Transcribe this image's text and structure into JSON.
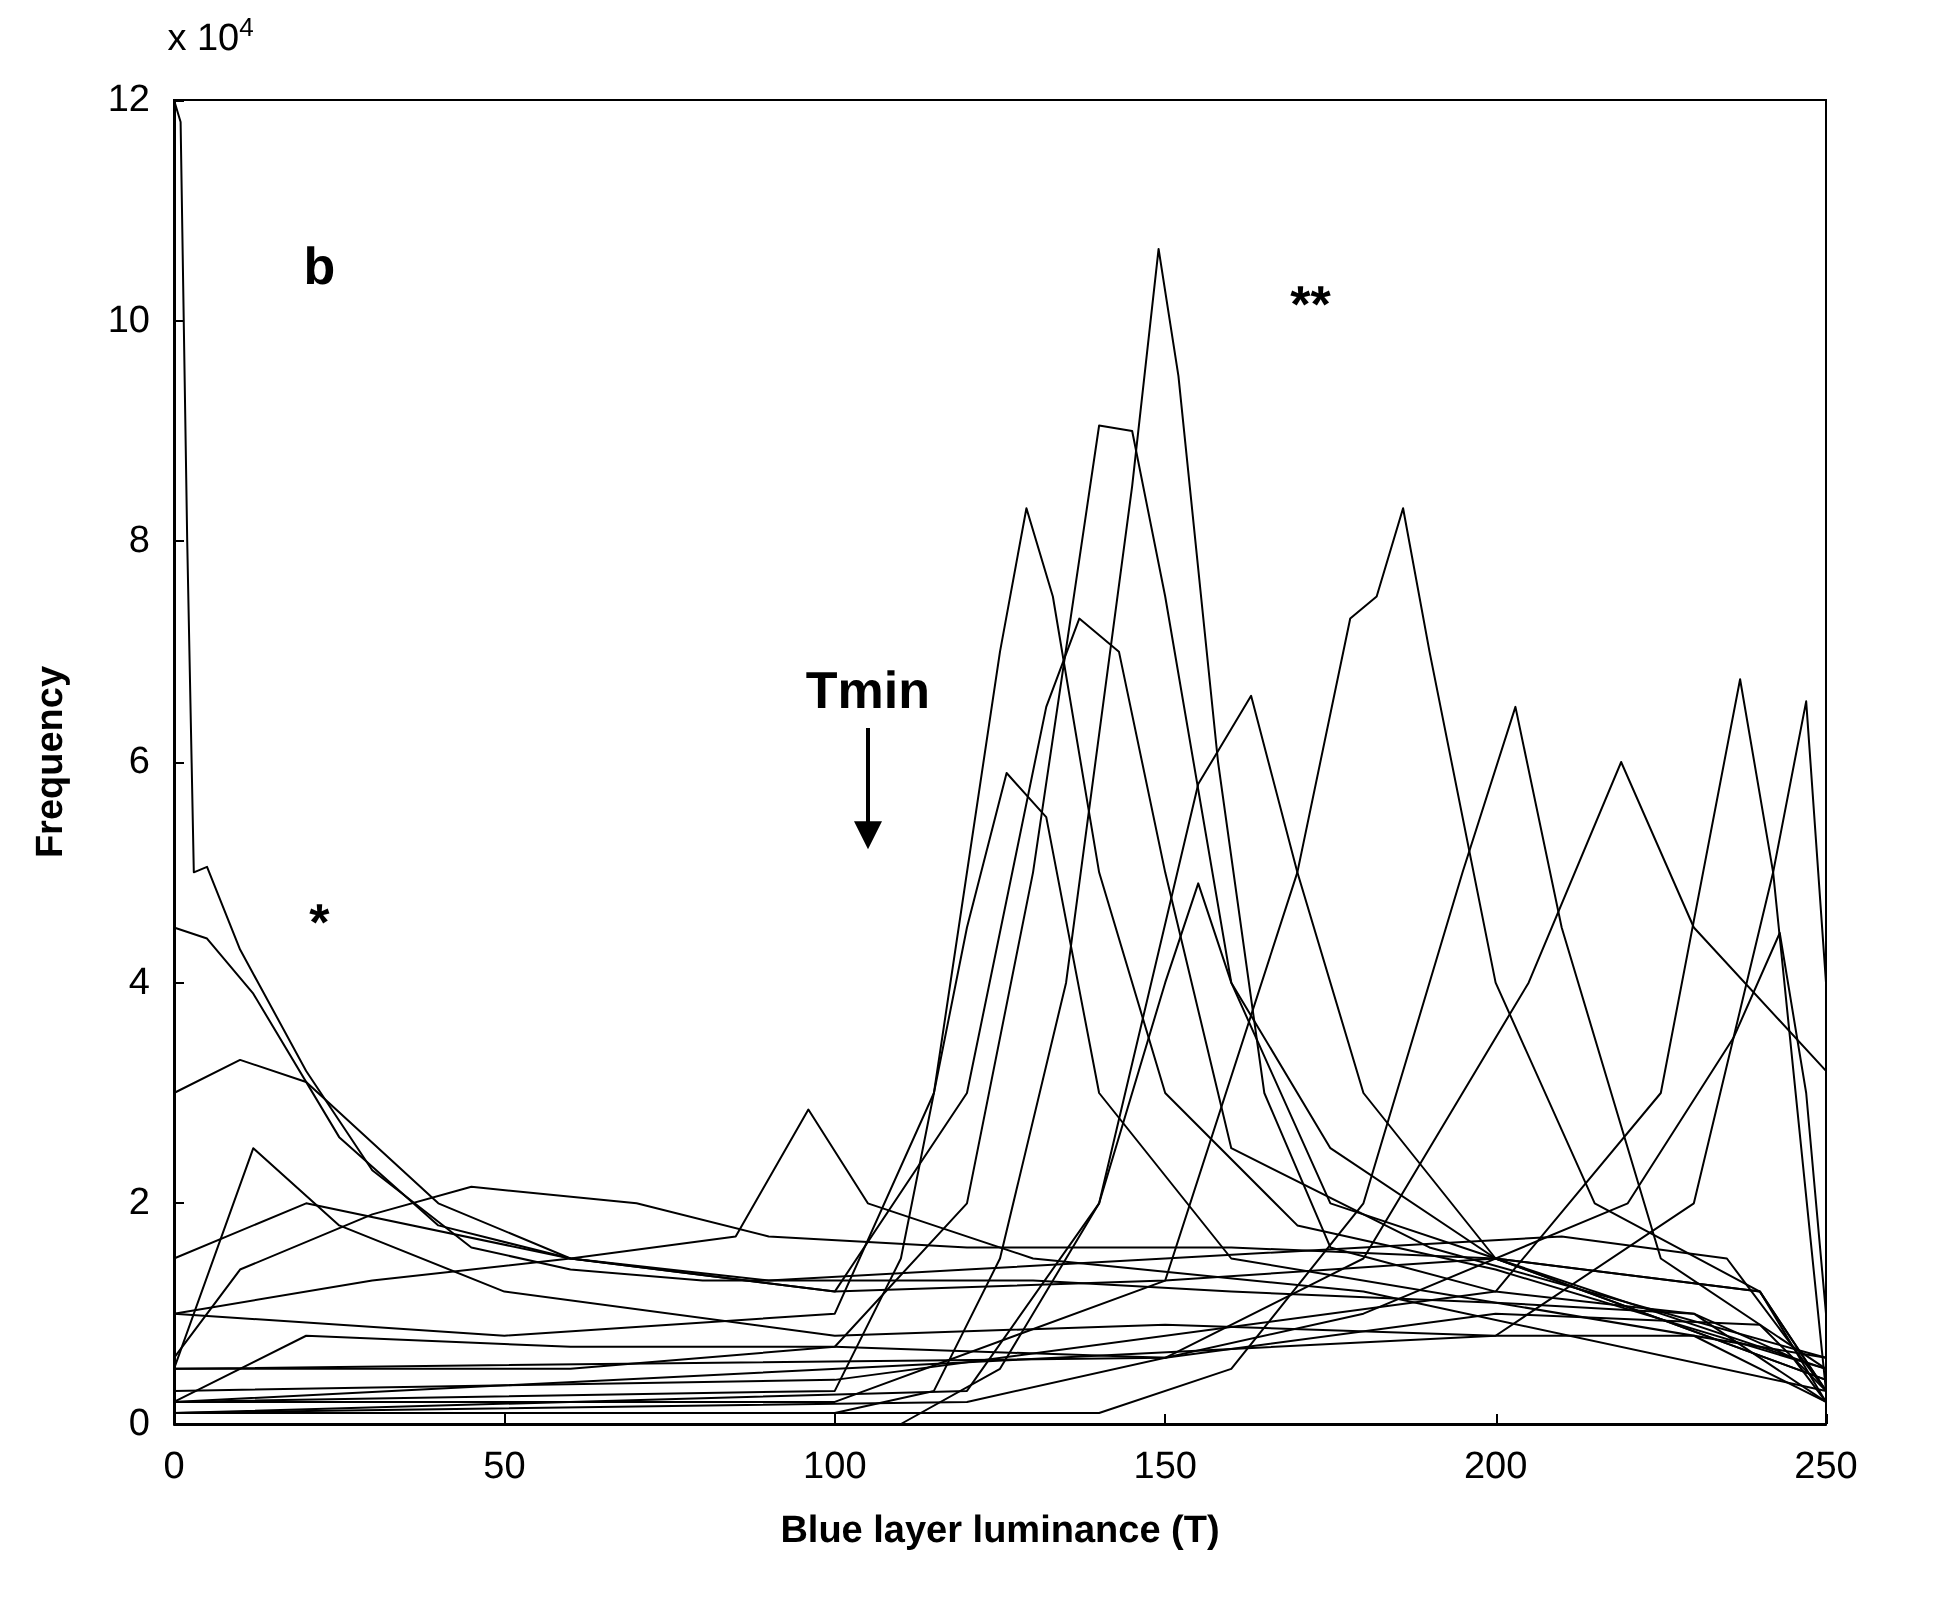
{
  "chart_data": {
    "type": "line",
    "xlabel": "Blue layer luminance (T)",
    "ylabel": "Frequency",
    "annotations": [
      "x 10$^{4}$",
      "b",
      "*",
      "**",
      "Tmin"
    ],
    "xlim": [
      0,
      250
    ],
    "xticks": [
      0,
      50,
      100,
      150,
      200,
      250
    ],
    "ylim": [
      0,
      12
    ],
    "yticks": [
      0,
      2,
      4,
      6,
      8,
      10,
      12
    ],
    "grid": false,
    "marker": "none",
    "line_style": "solid",
    "series": [
      {
        "color": "#000000",
        "x": [
          0,
          1,
          2,
          3,
          5,
          10,
          20,
          30,
          45,
          60,
          80,
          100,
          130,
          160,
          200,
          230,
          245,
          250
        ],
        "values": [
          12,
          11.8,
          8,
          5,
          5.05,
          4.3,
          3.2,
          2.3,
          1.6,
          1.4,
          1.3,
          1.3,
          1.3,
          1.2,
          1.1,
          1.0,
          0.6,
          0.2
        ]
      },
      {
        "color": "#000000",
        "x": [
          0,
          5,
          12,
          25,
          40,
          60,
          90,
          120,
          150,
          180,
          210,
          235,
          250
        ],
        "values": [
          4.5,
          4.4,
          3.9,
          2.6,
          1.8,
          1.5,
          1.3,
          1.4,
          1.5,
          1.6,
          1.7,
          1.5,
          0.3
        ]
      },
      {
        "color": "#000000",
        "x": [
          0,
          100,
          115,
          125,
          135,
          145,
          149,
          152,
          158,
          165,
          175,
          200,
          230,
          250
        ],
        "values": [
          0.1,
          0.1,
          0.3,
          1.5,
          4,
          8.5,
          10.65,
          9.5,
          6,
          3,
          1.6,
          1.2,
          1.0,
          0.2
        ]
      },
      {
        "color": "#000000",
        "x": [
          0,
          60,
          100,
          120,
          130,
          140,
          145,
          150,
          160,
          175,
          200,
          240,
          250
        ],
        "values": [
          0.5,
          0.5,
          0.7,
          2,
          5,
          9.05,
          9.0,
          7.5,
          4,
          2,
          1.5,
          1.2,
          0.3
        ]
      },
      {
        "color": "#000000",
        "x": [
          0,
          50,
          100,
          115,
          125,
          129,
          133,
          140,
          150,
          170,
          200,
          250
        ],
        "values": [
          1,
          0.8,
          1,
          3,
          7,
          8.3,
          7.5,
          5,
          3,
          1.8,
          1.4,
          0.5
        ]
      },
      {
        "color": "#000000",
        "x": [
          0,
          100,
          150,
          170,
          178,
          182,
          186,
          190,
          200,
          215,
          240,
          250
        ],
        "values": [
          0.2,
          0.2,
          1.3,
          5,
          7.3,
          7.5,
          8.3,
          7,
          4,
          2,
          1.2,
          0.3
        ]
      },
      {
        "color": "#000000",
        "x": [
          0,
          20,
          60,
          100,
          120,
          132,
          137,
          143,
          150,
          160,
          190,
          250
        ],
        "values": [
          1.5,
          2,
          1.5,
          1.2,
          3,
          6.5,
          7.3,
          7.0,
          5,
          2.5,
          1.6,
          0.6
        ]
      },
      {
        "color": "#000000",
        "x": [
          0,
          110,
          125,
          140,
          155,
          163,
          170,
          180,
          200,
          250
        ],
        "values": [
          0,
          0,
          0.5,
          2,
          5.8,
          6.6,
          5,
          3,
          1.5,
          0.4
        ]
      },
      {
        "color": "#000000",
        "x": [
          0,
          140,
          160,
          180,
          195,
          203,
          210,
          225,
          250
        ],
        "values": [
          0.1,
          0.1,
          0.5,
          2,
          5,
          6.5,
          4.5,
          1.5,
          0.5
        ]
      },
      {
        "color": "#000000",
        "x": [
          0,
          150,
          180,
          205,
          219,
          230,
          250
        ],
        "values": [
          0.5,
          0.6,
          1.5,
          4,
          6.0,
          4.5,
          3.2
        ]
      },
      {
        "color": "#000000",
        "x": [
          0,
          100,
          200,
          225,
          237,
          242,
          250
        ],
        "values": [
          0.3,
          0.4,
          1.2,
          3,
          6.75,
          5,
          0.3
        ]
      },
      {
        "color": "#000000",
        "x": [
          0,
          200,
          230,
          242,
          247,
          250
        ],
        "values": [
          0.2,
          0.8,
          2,
          5,
          6.55,
          4
        ]
      },
      {
        "color": "#000000",
        "x": [
          0,
          30,
          60,
          85,
          96,
          105,
          130,
          180,
          250
        ],
        "values": [
          1,
          1.3,
          1.5,
          1.7,
          2.85,
          2,
          1.5,
          1.2,
          0.3
        ]
      },
      {
        "color": "#000000",
        "x": [
          0,
          10,
          30,
          45,
          70,
          90,
          120,
          160,
          200,
          240,
          250
        ],
        "values": [
          0.6,
          1.4,
          1.9,
          2.15,
          2.0,
          1.7,
          1.6,
          1.6,
          1.5,
          1.2,
          0.2
        ]
      },
      {
        "color": "#000000",
        "x": [
          0,
          10,
          20,
          40,
          60,
          100,
          150,
          200,
          250
        ],
        "values": [
          3,
          3.3,
          3.1,
          2,
          1.5,
          1.2,
          1.3,
          1.5,
          0.4
        ]
      },
      {
        "color": "#000000",
        "x": [
          0,
          12,
          25,
          50,
          100,
          150,
          200,
          230,
          250
        ],
        "values": [
          0.5,
          2.5,
          1.8,
          1.2,
          0.8,
          0.9,
          0.8,
          0.8,
          0.2
        ]
      },
      {
        "color": "#000000",
        "x": [
          0,
          20,
          60,
          100,
          150,
          200,
          240,
          250
        ],
        "values": [
          0.2,
          0.8,
          0.7,
          0.7,
          0.6,
          1.0,
          0.9,
          0.3
        ]
      },
      {
        "color": "#000000",
        "x": [
          0,
          100,
          110,
          120,
          126,
          132,
          140,
          160,
          250
        ],
        "values": [
          0.2,
          0.3,
          1.5,
          4.5,
          5.9,
          5.5,
          3,
          1.5,
          0.6
        ]
      },
      {
        "color": "#000000",
        "x": [
          0,
          120,
          140,
          150,
          155,
          160,
          175,
          200,
          250
        ],
        "values": [
          0.1,
          0.3,
          2,
          4,
          4.9,
          4,
          2.5,
          1.5,
          0.5
        ]
      },
      {
        "color": "#000000",
        "x": [
          0,
          120,
          180,
          220,
          236,
          243,
          247,
          250
        ],
        "values": [
          0.1,
          0.2,
          1,
          2,
          3.5,
          4.45,
          3,
          1
        ]
      }
    ]
  }
}
